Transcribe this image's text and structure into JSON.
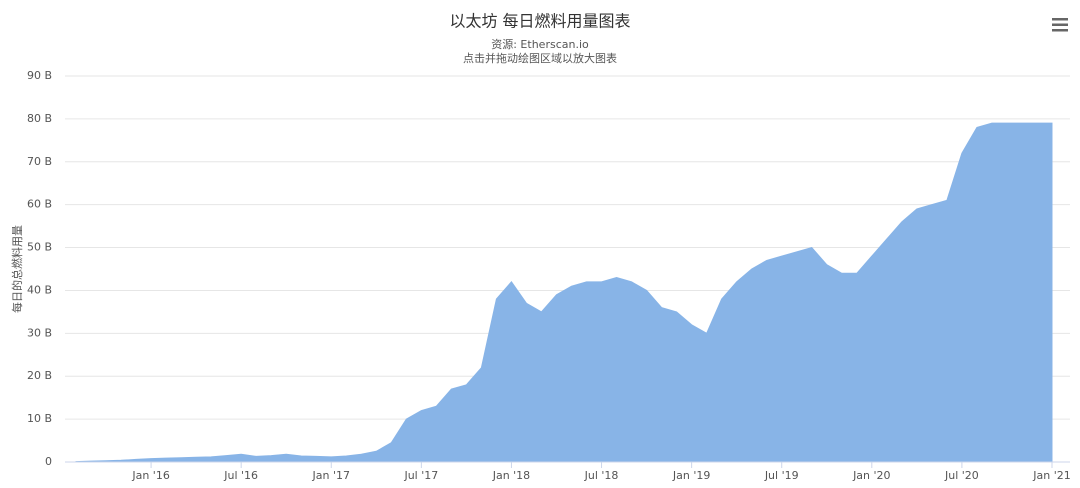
{
  "chart_data": {
    "type": "area",
    "title": "以太坊 每日燃料用量图表",
    "subtitle": [
      "资源: Etherscan.io",
      "点击并拖动绘图区域以放大图表"
    ],
    "y_label": "每日的总燃料用量",
    "color": "#88b4e7",
    "grid": true,
    "x": [
      "2015-08",
      "2015-09",
      "2015-10",
      "2015-11",
      "2015-12",
      "2016-01",
      "2016-02",
      "2016-03",
      "2016-04",
      "2016-05",
      "2016-06",
      "2016-07",
      "2016-08",
      "2016-09",
      "2016-10",
      "2016-11",
      "2016-12",
      "2017-01",
      "2017-02",
      "2017-03",
      "2017-04",
      "2017-05",
      "2017-06",
      "2017-07",
      "2017-08",
      "2017-09",
      "2017-10",
      "2017-11",
      "2017-12",
      "2018-01",
      "2018-02",
      "2018-03",
      "2018-04",
      "2018-05",
      "2018-06",
      "2018-07",
      "2018-08",
      "2018-09",
      "2018-10",
      "2018-11",
      "2018-12",
      "2019-01",
      "2019-02",
      "2019-03",
      "2019-04",
      "2019-05",
      "2019-06",
      "2019-07",
      "2019-08",
      "2019-09",
      "2019-10",
      "2019-11",
      "2019-12",
      "2020-01",
      "2020-02",
      "2020-03",
      "2020-04",
      "2020-05",
      "2020-06",
      "2020-07",
      "2020-08",
      "2020-09",
      "2020-10",
      "2020-11",
      "2020-12",
      "2021-01"
    ],
    "values": [
      0.1,
      0.2,
      0.3,
      0.4,
      0.6,
      0.8,
      0.9,
      1.0,
      1.1,
      1.2,
      1.5,
      1.8,
      1.3,
      1.5,
      1.8,
      1.4,
      1.3,
      1.2,
      1.4,
      1.8,
      2.5,
      4.5,
      10,
      12,
      13,
      17,
      18,
      22,
      38,
      42,
      37,
      35,
      39,
      41,
      42,
      42,
      43,
      42,
      40,
      36,
      35,
      32,
      30,
      38,
      42,
      45,
      47,
      48,
      49,
      50,
      46,
      44,
      44,
      48,
      52,
      56,
      59,
      60,
      61,
      72,
      78,
      79,
      79,
      79,
      79,
      79
    ],
    "xlim": [
      "2015-07",
      "2021-02"
    ],
    "xticks": [
      {
        "value": "2016-01",
        "label": "Jan '16"
      },
      {
        "value": "2016-07",
        "label": "Jul '16"
      },
      {
        "value": "2017-01",
        "label": "Jan '17"
      },
      {
        "value": "2017-07",
        "label": "Jul '17"
      },
      {
        "value": "2018-01",
        "label": "Jan '18"
      },
      {
        "value": "2018-07",
        "label": "Jul '18"
      },
      {
        "value": "2019-01",
        "label": "Jan '19"
      },
      {
        "value": "2019-07",
        "label": "Jul '19"
      },
      {
        "value": "2020-01",
        "label": "Jan '20"
      },
      {
        "value": "2020-07",
        "label": "Jul '20"
      },
      {
        "value": "2021-01",
        "label": "Jan '21"
      }
    ],
    "ylim": [
      0,
      90
    ],
    "yticks": [
      0,
      {
        "value": 10,
        "label": "10 B"
      },
      {
        "value": 20,
        "label": "20 B"
      },
      {
        "value": 30,
        "label": "30 B"
      },
      {
        "value": 40,
        "label": "40 B"
      },
      {
        "value": 50,
        "label": "50 B"
      },
      {
        "value": 60,
        "label": "60 B"
      },
      {
        "value": 70,
        "label": "70 B"
      },
      {
        "value": 80,
        "label": "80 B"
      },
      {
        "value": 90,
        "label": "90 B"
      }
    ]
  }
}
